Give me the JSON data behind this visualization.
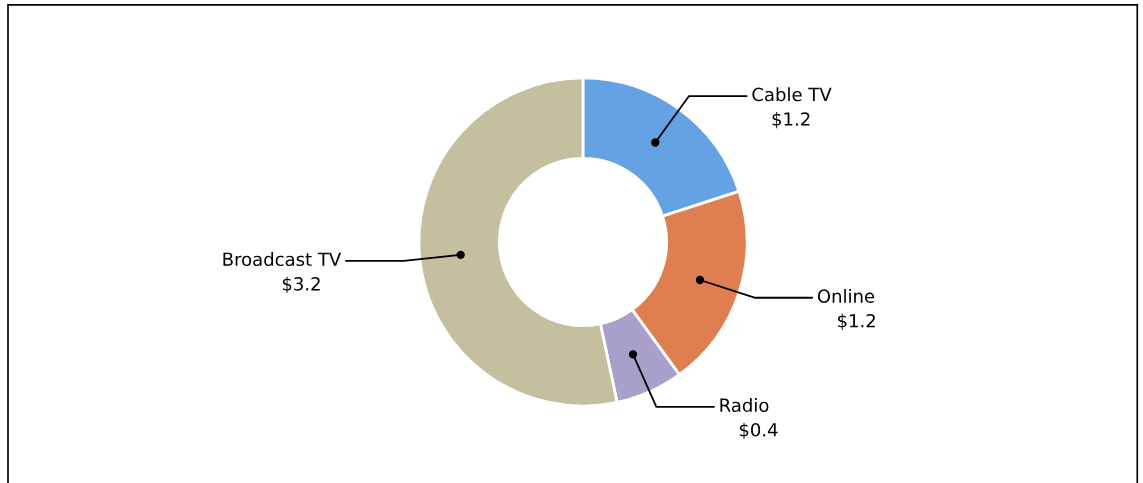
{
  "chart_data": {
    "type": "donut",
    "categories": [
      "Cable TV",
      "Online",
      "Radio",
      "Broadcast TV"
    ],
    "values": [
      1.2,
      1.2,
      0.4,
      3.2
    ],
    "value_labels": [
      "$1.2",
      "$1.2",
      "$0.4",
      "$3.2"
    ],
    "colors": [
      "#64a2e4",
      "#df7f4f",
      "#a99fcb",
      "#c4bf9e"
    ],
    "legend": false
  }
}
